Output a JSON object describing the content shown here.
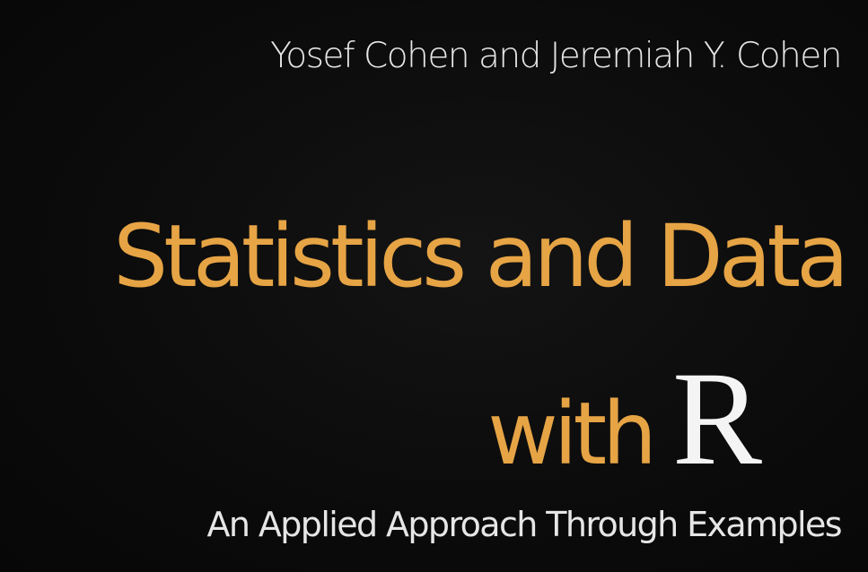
{
  "cover": {
    "authors": "Yosef Cohen and Jeremiah Y. Cohen",
    "title_line1": "Statistics and Data",
    "title_with": "with",
    "title_r": "R",
    "subtitle": "An Applied Approach Through Examples"
  },
  "colors": {
    "background": "#0a0a0a",
    "title_accent": "#e6a445",
    "text_light": "#e6e6e6",
    "r_letter": "#f4f4f4"
  }
}
